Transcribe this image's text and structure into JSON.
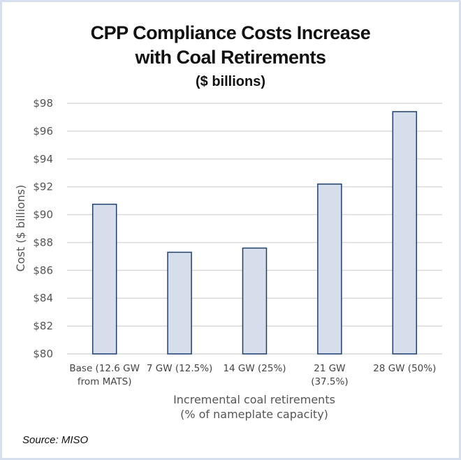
{
  "chart_data": {
    "type": "bar",
    "title": "CPP Compliance Costs Increase",
    "title_line2": "with Coal Retirements",
    "subtitle": "($ billions)",
    "xlabel": "Incremental coal retirements",
    "xlabel_line2": "(% of nameplate capacity)",
    "ylabel": "Cost ($ billions)",
    "ylim": [
      80,
      98
    ],
    "yticks": [
      80,
      82,
      84,
      86,
      88,
      90,
      92,
      94,
      96,
      98
    ],
    "ytick_labels": [
      "$80",
      "$82",
      "$84",
      "$86",
      "$88",
      "$90",
      "$92",
      "$94",
      "$96",
      "$98"
    ],
    "grid": true,
    "categories": [
      [
        "Base (12.6 GW",
        "from MATS)"
      ],
      [
        "7 GW  (12.5%)"
      ],
      [
        "14 GW  (25%)"
      ],
      [
        "21 GW",
        "(37.5%)"
      ],
      [
        "28 GW  (50%)"
      ]
    ],
    "values": [
      90.75,
      87.3,
      87.6,
      92.2,
      97.4
    ],
    "bar_fill": "#d6deeb",
    "bar_stroke": "#1f3f6b",
    "grid_color": "#d9d9d9"
  },
  "source": "Source:  MISO"
}
